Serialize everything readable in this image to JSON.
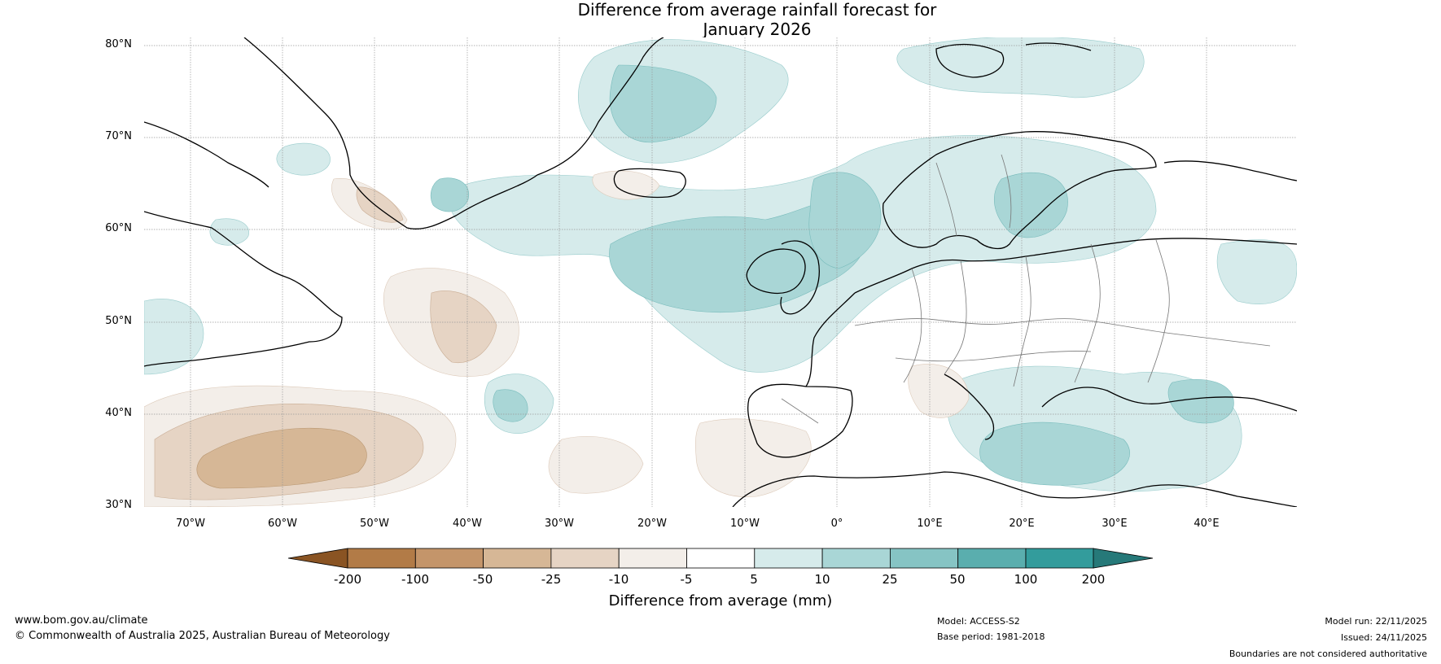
{
  "title_line1": "Difference from average rainfall forecast for",
  "title_line2": "January 2026",
  "lat_labels": [
    "80°N",
    "70°N",
    "60°N",
    "50°N",
    "40°N",
    "30°N"
  ],
  "lon_labels": [
    "70°W",
    "60°W",
    "50°W",
    "40°W",
    "30°W",
    "20°W",
    "10°W",
    "0°",
    "10°E",
    "20°E",
    "30°E",
    "40°E"
  ],
  "colorbar": {
    "ticks": [
      "-200",
      "-100",
      "-50",
      "-25",
      "-10",
      "-5",
      "5",
      "10",
      "25",
      "50",
      "100",
      "200"
    ],
    "label": "Difference from average (mm)",
    "colors": [
      "#8a5423",
      "#b27b47",
      "#c4956a",
      "#d6b796",
      "#e6d4c4",
      "#f3eee9",
      "#ffffff",
      "#d6ebeb",
      "#a9d6d6",
      "#86c4c4",
      "#5aaeae",
      "#339c9c",
      "#267979"
    ]
  },
  "footer": {
    "website": "www.bom.gov.au/climate",
    "copyright": "© Commonwealth of Australia 2025, Australian Bureau of Meteorology",
    "model": "Model: ACCESS-S2",
    "base_period": "Base period: 1981-2018",
    "model_run": "Model run: 22/11/2025",
    "issued": "Issued: 24/11/2025",
    "disclaimer": "Boundaries are not considered authoritative"
  }
}
